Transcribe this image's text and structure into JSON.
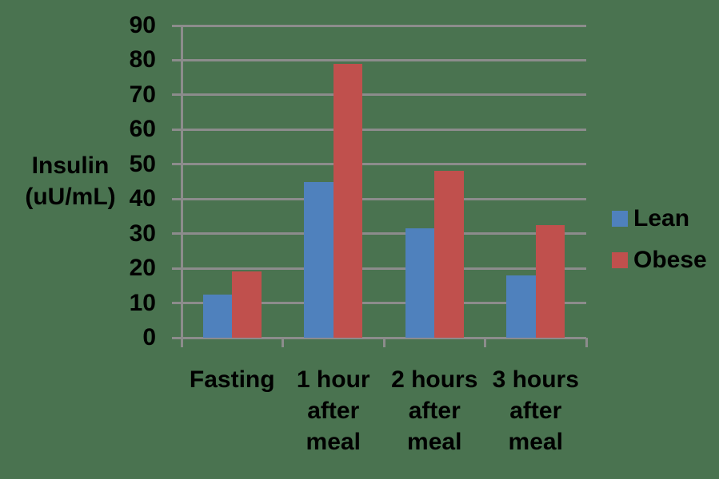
{
  "chart_data": {
    "type": "bar",
    "title": "",
    "ylabel": "Insulin (uU/mL)",
    "ylabel_lines": [
      "Insulin",
      "(uU/mL)"
    ],
    "categories": [
      "Fasting",
      "1 hour after meal",
      "2 hours after meal",
      "3 hours after meal"
    ],
    "category_lines": [
      [
        "Fasting"
      ],
      [
        "1 hour",
        "after",
        "meal"
      ],
      [
        "2 hours",
        "after",
        "meal"
      ],
      [
        "3 hours",
        "after",
        "meal"
      ]
    ],
    "series": [
      {
        "name": "Lean",
        "color": "#4F81BD",
        "values": [
          12.5,
          45,
          31.5,
          18
        ]
      },
      {
        "name": "Obese",
        "color": "#C0504D",
        "values": [
          19,
          79,
          48,
          32.5
        ]
      }
    ],
    "ylim": [
      0,
      90
    ],
    "ytick_step": 10,
    "ytick_labels": [
      "0",
      "10",
      "20",
      "30",
      "40",
      "50",
      "60",
      "70",
      "80",
      "90"
    ],
    "grid": true,
    "legend_position": "right"
  },
  "colors": {
    "background": "#4A7350",
    "grid": "#8C8C8C",
    "text": "#000000",
    "series_lean": "#4F81BD",
    "series_obese": "#C0504D"
  }
}
